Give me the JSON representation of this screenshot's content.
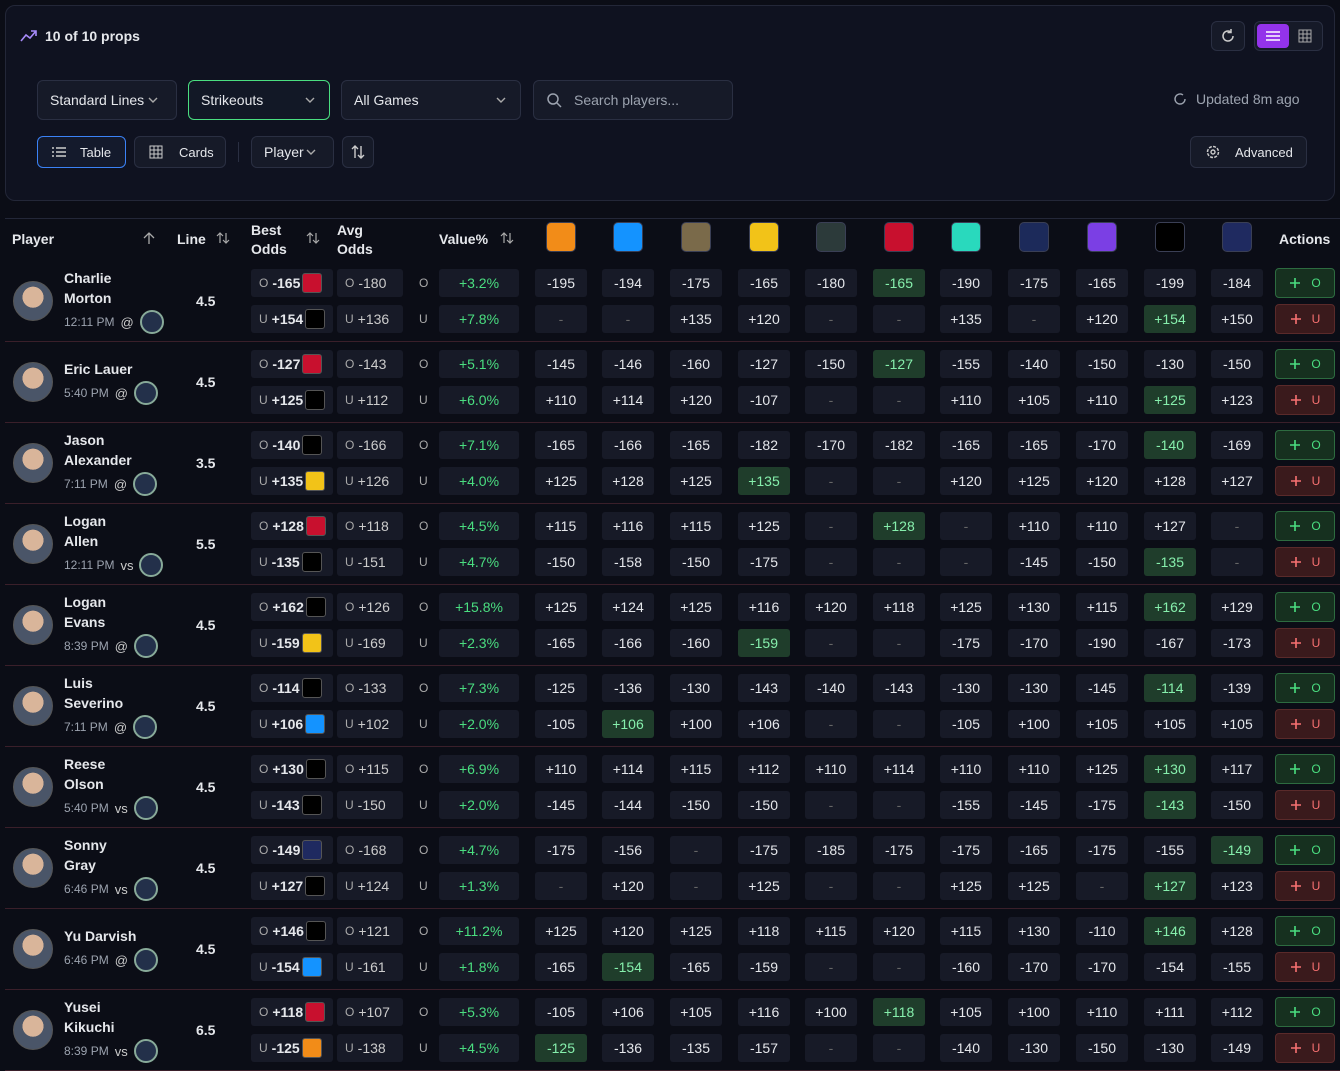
{
  "header": {
    "count": "10 of 10 props"
  },
  "filters": {
    "lines": "Standard Lines",
    "market": "Strikeouts",
    "games": "All Games",
    "search": "Search players...",
    "updated": "Updated 8m ago"
  },
  "toolbar": {
    "table": "Table",
    "cards": "Cards",
    "sort": "Player",
    "advanced": "Advanced"
  },
  "table": {
    "columns": {
      "player": "Player",
      "line": "Line",
      "best": "Best Odds",
      "avg": "Avg Odds",
      "value": "Value%",
      "actions": "Actions"
    },
    "book_colors": [
      "#f28c18",
      "#1493ff",
      "#7a6a4a",
      "#f2c318",
      "#2c3a3a",
      "#c8102e",
      "#29d9bd",
      "#1c2a5a",
      "#7b3fe4",
      "#000000",
      "#1f2a60"
    ],
    "rows": [
      {
        "name": "Charlie Morton",
        "time": "12:11 PM",
        "venue": "@",
        "line": 4.5,
        "sides": [
          {
            "side": "O",
            "best": "-165",
            "best_book": 5,
            "avg": "-180",
            "value": "+3.2%",
            "books": [
              "-195",
              "-194",
              "-175",
              "-165",
              "-180",
              "-165",
              "-190",
              "-175",
              "-165",
              "-199",
              "-184"
            ]
          },
          {
            "side": "U",
            "best": "+154",
            "best_book": 9,
            "avg": "+136",
            "value": "+7.8%",
            "books": [
              "-",
              "-",
              "+135",
              "+120",
              "-",
              "-",
              "+135",
              "-",
              "+120",
              "+154",
              "+150"
            ]
          }
        ]
      },
      {
        "name": "Eric Lauer",
        "time": "5:40 PM",
        "venue": "@",
        "line": 4.5,
        "sides": [
          {
            "side": "O",
            "best": "-127",
            "best_book": 5,
            "avg": "-143",
            "value": "+5.1%",
            "books": [
              "-145",
              "-146",
              "-160",
              "-127",
              "-150",
              "-127",
              "-155",
              "-140",
              "-150",
              "-130",
              "-150"
            ]
          },
          {
            "side": "U",
            "best": "+125",
            "best_book": 9,
            "avg": "+112",
            "value": "+6.0%",
            "books": [
              "+110",
              "+114",
              "+120",
              "-107",
              "-",
              "-",
              "+110",
              "+105",
              "+110",
              "+125",
              "+123"
            ]
          }
        ]
      },
      {
        "name": "Jason Alexander",
        "time": "7:11 PM",
        "venue": "@",
        "line": 3.5,
        "sides": [
          {
            "side": "O",
            "best": "-140",
            "best_book": 9,
            "avg": "-166",
            "value": "+7.1%",
            "books": [
              "-165",
              "-166",
              "-165",
              "-182",
              "-170",
              "-182",
              "-165",
              "-165",
              "-170",
              "-140",
              "-169"
            ]
          },
          {
            "side": "U",
            "best": "+135",
            "best_book": 3,
            "avg": "+126",
            "value": "+4.0%",
            "books": [
              "+125",
              "+128",
              "+125",
              "+135",
              "-",
              "-",
              "+120",
              "+125",
              "+120",
              "+128",
              "+127"
            ]
          }
        ]
      },
      {
        "name": "Logan Allen",
        "time": "12:11 PM",
        "venue": "vs",
        "line": 5.5,
        "sides": [
          {
            "side": "O",
            "best": "+128",
            "best_book": 5,
            "avg": "+118",
            "value": "+4.5%",
            "books": [
              "+115",
              "+116",
              "+115",
              "+125",
              "-",
              "+128",
              "-",
              "+110",
              "+110",
              "+127",
              "-"
            ]
          },
          {
            "side": "U",
            "best": "-135",
            "best_book": 9,
            "avg": "-151",
            "value": "+4.7%",
            "books": [
              "-150",
              "-158",
              "-150",
              "-175",
              "-",
              "-",
              "-",
              "-145",
              "-150",
              "-135",
              "-"
            ]
          }
        ]
      },
      {
        "name": "Logan Evans",
        "time": "8:39 PM",
        "venue": "@",
        "line": 4.5,
        "sides": [
          {
            "side": "O",
            "best": "+162",
            "best_book": 9,
            "avg": "+126",
            "value": "+15.8%",
            "books": [
              "+125",
              "+124",
              "+125",
              "+116",
              "+120",
              "+118",
              "+125",
              "+130",
              "+115",
              "+162",
              "+129"
            ]
          },
          {
            "side": "U",
            "best": "-159",
            "best_book": 3,
            "avg": "-169",
            "value": "+2.3%",
            "books": [
              "-165",
              "-166",
              "-160",
              "-159",
              "-",
              "-",
              "-175",
              "-170",
              "-190",
              "-167",
              "-173"
            ]
          }
        ]
      },
      {
        "name": "Luis Severino",
        "time": "7:11 PM",
        "venue": "@",
        "line": 4.5,
        "sides": [
          {
            "side": "O",
            "best": "-114",
            "best_book": 9,
            "avg": "-133",
            "value": "+7.3%",
            "books": [
              "-125",
              "-136",
              "-130",
              "-143",
              "-140",
              "-143",
              "-130",
              "-130",
              "-145",
              "-114",
              "-139"
            ]
          },
          {
            "side": "U",
            "best": "+106",
            "best_book": 1,
            "avg": "+102",
            "value": "+2.0%",
            "books": [
              "-105",
              "+106",
              "+100",
              "+106",
              "-",
              "-",
              "-105",
              "+100",
              "+105",
              "+105",
              "+105"
            ]
          }
        ]
      },
      {
        "name": "Reese Olson",
        "time": "5:40 PM",
        "venue": "vs",
        "line": 4.5,
        "sides": [
          {
            "side": "O",
            "best": "+130",
            "best_book": 9,
            "avg": "+115",
            "value": "+6.9%",
            "books": [
              "+110",
              "+114",
              "+115",
              "+112",
              "+110",
              "+114",
              "+110",
              "+110",
              "+125",
              "+130",
              "+117"
            ]
          },
          {
            "side": "U",
            "best": "-143",
            "best_book": 9,
            "avg": "-150",
            "value": "+2.0%",
            "books": [
              "-145",
              "-144",
              "-150",
              "-150",
              "-",
              "-",
              "-155",
              "-145",
              "-175",
              "-143",
              "-150"
            ]
          }
        ]
      },
      {
        "name": "Sonny Gray",
        "time": "6:46 PM",
        "venue": "vs",
        "line": 4.5,
        "sides": [
          {
            "side": "O",
            "best": "-149",
            "best_book": 10,
            "avg": "-168",
            "value": "+4.7%",
            "books": [
              "-175",
              "-156",
              "-",
              "-175",
              "-185",
              "-175",
              "-175",
              "-165",
              "-175",
              "-155",
              "-149"
            ]
          },
          {
            "side": "U",
            "best": "+127",
            "best_book": 9,
            "avg": "+124",
            "value": "+1.3%",
            "books": [
              "-",
              "+120",
              "-",
              "+125",
              "-",
              "-",
              "+125",
              "+125",
              "-",
              "+127",
              "+123"
            ]
          }
        ]
      },
      {
        "name": "Yu Darvish",
        "time": "6:46 PM",
        "venue": "@",
        "line": 4.5,
        "sides": [
          {
            "side": "O",
            "best": "+146",
            "best_book": 9,
            "avg": "+121",
            "value": "+11.2%",
            "books": [
              "+125",
              "+120",
              "+125",
              "+118",
              "+115",
              "+120",
              "+115",
              "+130",
              "-110",
              "+146",
              "+128"
            ]
          },
          {
            "side": "U",
            "best": "-154",
            "best_book": 1,
            "avg": "-161",
            "value": "+1.8%",
            "books": [
              "-165",
              "-154",
              "-165",
              "-159",
              "-",
              "-",
              "-160",
              "-170",
              "-170",
              "-154",
              "-155"
            ]
          }
        ]
      },
      {
        "name": "Yusei Kikuchi",
        "time": "8:39 PM",
        "venue": "vs",
        "line": 6.5,
        "sides": [
          {
            "side": "O",
            "best": "+118",
            "best_book": 5,
            "avg": "+107",
            "value": "+5.3%",
            "books": [
              "-105",
              "+106",
              "+105",
              "+116",
              "+100",
              "+118",
              "+105",
              "+100",
              "+110",
              "+111",
              "+112"
            ]
          },
          {
            "side": "U",
            "best": "-125",
            "best_book": 0,
            "avg": "-138",
            "value": "+4.5%",
            "books": [
              "-125",
              "-136",
              "-135",
              "-157",
              "-",
              "-",
              "-140",
              "-130",
              "-150",
              "-130",
              "-149"
            ]
          }
        ]
      }
    ]
  }
}
